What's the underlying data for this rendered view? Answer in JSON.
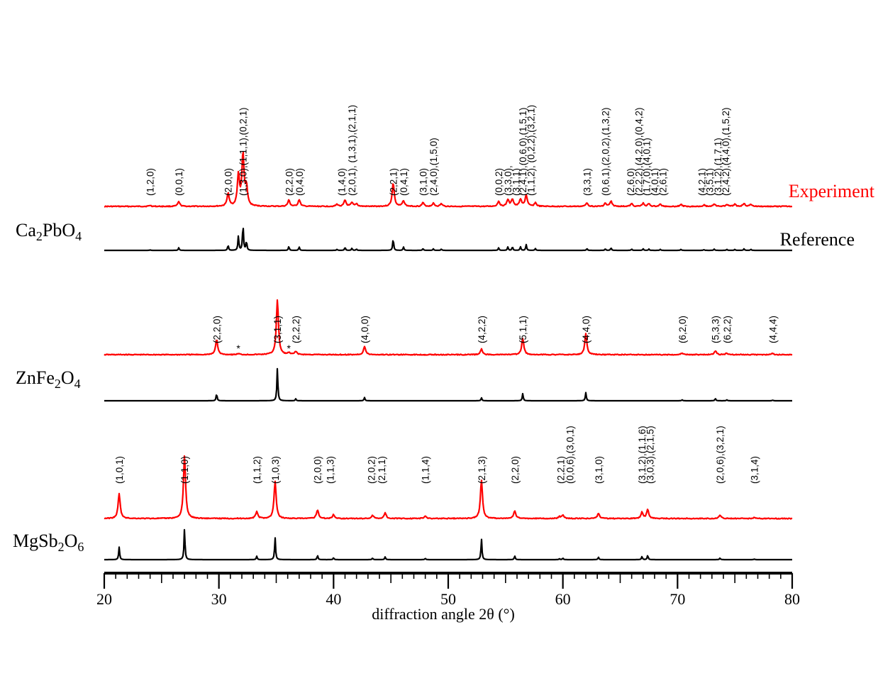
{
  "chart_data": {
    "type": "line",
    "xlabel": "diffraction angle 2θ (°)",
    "xlim": [
      20,
      80
    ],
    "x_ticks": [
      20,
      30,
      40,
      50,
      60,
      70,
      80
    ],
    "colors": {
      "experiment": "#ff0000",
      "reference": "#000000"
    },
    "legend": {
      "experiment": "Experiment",
      "reference": "Reference"
    },
    "panels": [
      {
        "sample": "Ca2PbO4",
        "sample_html": "Ca<sub>2</sub>PbO<sub>4</sub>",
        "sample_svg": [
          [
            "Ca",
            0
          ],
          [
            "2",
            1
          ],
          [
            "PbO",
            0
          ],
          [
            "4",
            1
          ]
        ],
        "peaks": [
          {
            "x": 24.0,
            "exp": 0.02,
            "ref": 0.02
          },
          {
            "x": 26.5,
            "exp": 0.09,
            "ref": 0.1
          },
          {
            "x": 30.8,
            "exp": 0.25,
            "ref": 0.2
          },
          {
            "x": 31.7,
            "exp": 0.6,
            "ref": 0.55
          },
          {
            "x": 32.1,
            "exp": 1.0,
            "ref": 1.0
          },
          {
            "x": 32.4,
            "exp": 0.35,
            "ref": 0.35
          },
          {
            "x": 36.1,
            "exp": 0.12,
            "ref": 0.15
          },
          {
            "x": 37.0,
            "exp": 0.13,
            "ref": 0.13
          },
          {
            "x": 40.3,
            "exp": 0.04,
            "ref": 0.04
          },
          {
            "x": 41.0,
            "exp": 0.12,
            "ref": 0.12
          },
          {
            "x": 41.6,
            "exp": 0.07,
            "ref": 0.08
          },
          {
            "x": 42.0,
            "exp": 0.05,
            "ref": 0.05
          },
          {
            "x": 45.2,
            "exp": 0.45,
            "ref": 0.45
          },
          {
            "x": 46.1,
            "exp": 0.11,
            "ref": 0.13
          },
          {
            "x": 47.8,
            "exp": 0.07,
            "ref": 0.07
          },
          {
            "x": 48.7,
            "exp": 0.06,
            "ref": 0.06
          },
          {
            "x": 49.4,
            "exp": 0.05,
            "ref": 0.05
          },
          {
            "x": 54.4,
            "exp": 0.1,
            "ref": 0.1
          },
          {
            "x": 55.2,
            "exp": 0.13,
            "ref": 0.13
          },
          {
            "x": 55.6,
            "exp": 0.14,
            "ref": 0.14
          },
          {
            "x": 56.3,
            "exp": 0.14,
            "ref": 0.14
          },
          {
            "x": 56.8,
            "exp": 0.22,
            "ref": 0.22
          },
          {
            "x": 57.6,
            "exp": 0.07,
            "ref": 0.07
          },
          {
            "x": 62.1,
            "exp": 0.07,
            "ref": 0.07
          },
          {
            "x": 63.7,
            "exp": 0.06,
            "ref": 0.06
          },
          {
            "x": 64.2,
            "exp": 0.1,
            "ref": 0.1
          },
          {
            "x": 66.0,
            "exp": 0.05,
            "ref": 0.05
          },
          {
            "x": 67.0,
            "exp": 0.06,
            "ref": 0.06
          },
          {
            "x": 67.5,
            "exp": 0.05,
            "ref": 0.05
          },
          {
            "x": 68.5,
            "exp": 0.04,
            "ref": 0.04
          },
          {
            "x": 70.3,
            "exp": 0.04,
            "ref": 0.04
          },
          {
            "x": 72.3,
            "exp": 0.03,
            "ref": 0.03
          },
          {
            "x": 73.2,
            "exp": 0.05,
            "ref": 0.05
          },
          {
            "x": 74.3,
            "exp": 0.04,
            "ref": 0.04
          },
          {
            "x": 75.0,
            "exp": 0.04,
            "ref": 0.04
          },
          {
            "x": 75.8,
            "exp": 0.06,
            "ref": 0.06
          },
          {
            "x": 76.4,
            "exp": 0.04,
            "ref": 0.04
          }
        ],
        "labels": [
          {
            "x": 24.0,
            "text": "(1,2,0)"
          },
          {
            "x": 26.5,
            "text": "(0,0,1)"
          },
          {
            "x": 30.8,
            "text": "(2,0,0)"
          },
          {
            "x": 32.1,
            "text": "(1,3,0),(1,1,1),(0,2,1)"
          },
          {
            "x": 36.1,
            "text": "(2,2,0)"
          },
          {
            "x": 37.0,
            "text": "(0,4,0)"
          },
          {
            "x": 40.7,
            "text": "(1,4,0)"
          },
          {
            "x": 41.6,
            "text": "(2,0,1), (1,3,1),(2,1,1)"
          },
          {
            "x": 45.2,
            "text": "(2,2,1)"
          },
          {
            "x": 46.1,
            "text": "(0,4,1)"
          },
          {
            "x": 47.8,
            "text": "(3,1,0)"
          },
          {
            "x": 48.7,
            "text": "(2,4,0),(1,5,0)"
          },
          {
            "x": 54.4,
            "text": "(0,0,2)"
          },
          {
            "x": 55.2,
            "text": "(3,3,0),"
          },
          {
            "x": 55.9,
            "text": "(3,1,1)"
          },
          {
            "x": 56.5,
            "text": "(2,4,1),(0,6,0),(1,5,1)"
          },
          {
            "x": 57.2,
            "text": "(1,1,2), (0,2,2),(3,2,1)"
          },
          {
            "x": 62.1,
            "text": "(3,3,1)"
          },
          {
            "x": 63.7,
            "text": "(0,6,1),(2,0,2),(1,3,2)"
          },
          {
            "x": 65.9,
            "text": "(2,6,0)"
          },
          {
            "x": 66.6,
            "text": "(2,2,2),(4,2,0),(0,4,2)"
          },
          {
            "x": 67.3,
            "text": "(1,7,0),(4,0,1)"
          },
          {
            "x": 68.0,
            "text": "(4,0,1)"
          },
          {
            "x": 68.7,
            "text": "(2,6,1)"
          },
          {
            "x": 72.1,
            "text": "(4,2,1)"
          },
          {
            "x": 72.8,
            "text": "(3,5,1)"
          },
          {
            "x": 73.5,
            "text": "(3,1,2),(1,7,1)"
          },
          {
            "x": 74.2,
            "text": "(2,4,2),(4,4,0),(1,5,2)"
          }
        ]
      },
      {
        "sample": "ZnFe2O4",
        "sample_html": "ZnFe<sub>2</sub>O<sub>4</sub>",
        "sample_svg": [
          [
            "ZnFe",
            0
          ],
          [
            "2",
            1
          ],
          [
            "O",
            0
          ],
          [
            "4",
            1
          ]
        ],
        "peaks": [
          {
            "x": 29.8,
            "exp": 0.28,
            "ref": 0.22
          },
          {
            "x": 31.7,
            "exp": 0.02,
            "ref": 0.0
          },
          {
            "x": 35.1,
            "exp": 1.0,
            "ref": 1.0
          },
          {
            "x": 36.1,
            "exp": 0.03,
            "ref": 0.0
          },
          {
            "x": 36.7,
            "exp": 0.06,
            "ref": 0.06
          },
          {
            "x": 42.7,
            "exp": 0.15,
            "ref": 0.1
          },
          {
            "x": 52.9,
            "exp": 0.1,
            "ref": 0.09
          },
          {
            "x": 56.5,
            "exp": 0.3,
            "ref": 0.22
          },
          {
            "x": 62.0,
            "exp": 0.38,
            "ref": 0.25
          },
          {
            "x": 70.4,
            "exp": 0.03,
            "ref": 0.03
          },
          {
            "x": 73.3,
            "exp": 0.07,
            "ref": 0.07
          },
          {
            "x": 74.3,
            "exp": 0.03,
            "ref": 0.03
          },
          {
            "x": 78.3,
            "exp": 0.02,
            "ref": 0.02
          }
        ],
        "labels": [
          {
            "x": 29.8,
            "text": "(2,2,0)"
          },
          {
            "x": 35.1,
            "text": "(3,1,1)"
          },
          {
            "x": 36.7,
            "text": "(2,2,2)"
          },
          {
            "x": 42.7,
            "text": "(4,0,0)"
          },
          {
            "x": 52.9,
            "text": "(4,2,2)"
          },
          {
            "x": 56.5,
            "text": "(5,1,1)"
          },
          {
            "x": 62.0,
            "text": "(4,4,0)"
          },
          {
            "x": 70.4,
            "text": "(6,2,0)"
          },
          {
            "x": 73.3,
            "text": "(5,3,3)"
          },
          {
            "x": 74.3,
            "text": "(6,2,2)"
          },
          {
            "x": 78.3,
            "text": "(4,4,4)"
          }
        ],
        "impurity_marks": [
          31.7,
          36.1
        ],
        "impurity_symbol": "*"
      },
      {
        "sample": "MgSb2O6",
        "sample_html": "MgSb<sub>2</sub>O<sub>6</sub>",
        "sample_svg": [
          [
            "MgSb",
            0
          ],
          [
            "2",
            1
          ],
          [
            "O",
            0
          ],
          [
            "6",
            1
          ]
        ],
        "peaks": [
          {
            "x": 21.3,
            "exp": 0.39,
            "ref": 0.4
          },
          {
            "x": 27.0,
            "exp": 1.0,
            "ref": 1.0
          },
          {
            "x": 33.3,
            "exp": 0.11,
            "ref": 0.11
          },
          {
            "x": 34.9,
            "exp": 0.59,
            "ref": 0.71
          },
          {
            "x": 38.6,
            "exp": 0.14,
            "ref": 0.14
          },
          {
            "x": 40.0,
            "exp": 0.06,
            "ref": 0.06
          },
          {
            "x": 43.4,
            "exp": 0.05,
            "ref": 0.05
          },
          {
            "x": 44.5,
            "exp": 0.09,
            "ref": 0.09
          },
          {
            "x": 48.0,
            "exp": 0.04,
            "ref": 0.04
          },
          {
            "x": 52.9,
            "exp": 0.61,
            "ref": 0.66
          },
          {
            "x": 55.8,
            "exp": 0.12,
            "ref": 0.12
          },
          {
            "x": 59.7,
            "exp": 0.03,
            "ref": 0.03
          },
          {
            "x": 60.0,
            "exp": 0.05,
            "ref": 0.05
          },
          {
            "x": 63.1,
            "exp": 0.08,
            "ref": 0.08
          },
          {
            "x": 66.9,
            "exp": 0.1,
            "ref": 0.1
          },
          {
            "x": 67.4,
            "exp": 0.14,
            "ref": 0.14
          },
          {
            "x": 73.7,
            "exp": 0.05,
            "ref": 0.05
          },
          {
            "x": 76.7,
            "exp": 0.02,
            "ref": 0.02
          }
        ],
        "labels": [
          {
            "x": 21.3,
            "text": "(1,0,1)"
          },
          {
            "x": 27.0,
            "text": "(1,1,0)"
          },
          {
            "x": 33.3,
            "text": "(1,1,2)"
          },
          {
            "x": 34.9,
            "text": "(1,0,3)"
          },
          {
            "x": 38.6,
            "text": "(2,0,0)"
          },
          {
            "x": 39.7,
            "text": "(1,1,3)"
          },
          {
            "x": 43.3,
            "text": "(2,0,2)"
          },
          {
            "x": 44.2,
            "text": "(2,1,1)"
          },
          {
            "x": 48.0,
            "text": "(1,1,4)"
          },
          {
            "x": 52.9,
            "text": "(2,1,3)"
          },
          {
            "x": 55.8,
            "text": "(2,2,0)"
          },
          {
            "x": 59.8,
            "text": "(2,2,1)"
          },
          {
            "x": 60.6,
            "text": "(0,0,6),(3,0,1)"
          },
          {
            "x": 63.1,
            "text": "(3,1,0)"
          },
          {
            "x": 66.9,
            "text": "(3,1,2),(1,1,6)"
          },
          {
            "x": 67.6,
            "text": "(3,0,3),(2,1,5)"
          },
          {
            "x": 73.7,
            "text": "(2,0,6),(3,2,1)"
          },
          {
            "x": 76.7,
            "text": "(3,1,4)"
          }
        ]
      }
    ]
  }
}
